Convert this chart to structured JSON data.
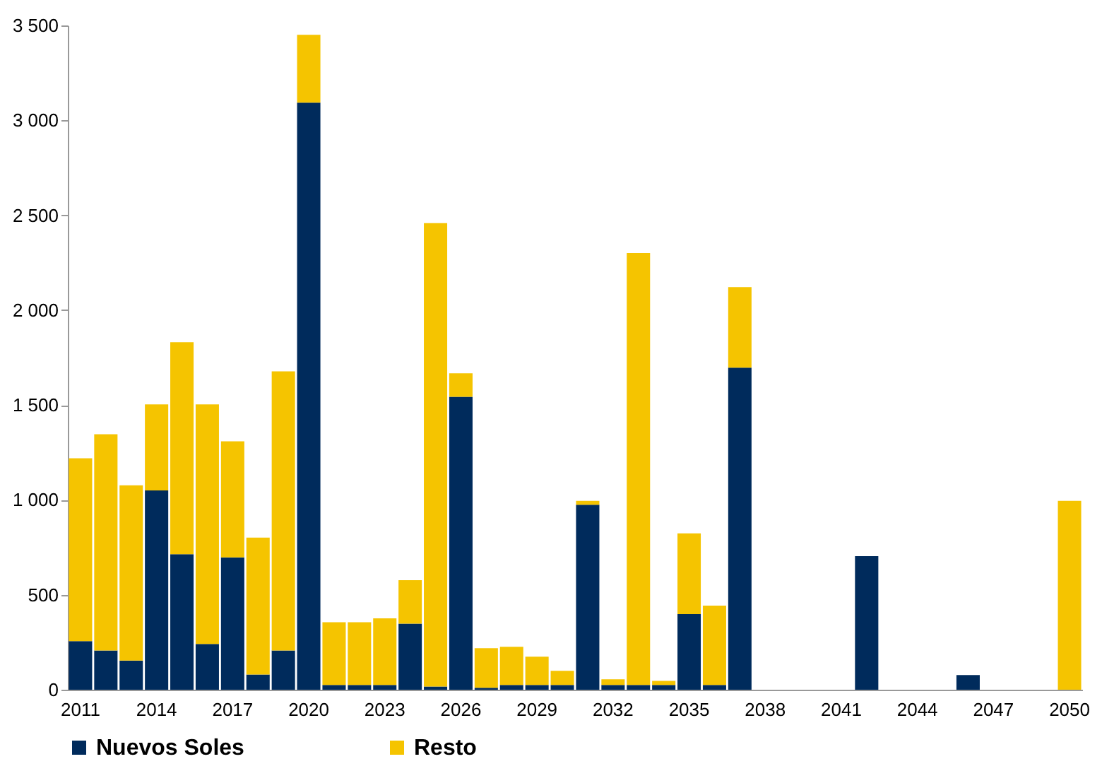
{
  "chart_data": {
    "type": "bar",
    "stacked": true,
    "legend": "bottom",
    "grid": false,
    "categories": [
      "2011",
      null,
      null,
      "2014",
      null,
      null,
      "2017",
      null,
      null,
      "2020",
      null,
      null,
      "2023",
      null,
      null,
      "2026",
      null,
      null,
      "2029",
      null,
      null,
      "2032",
      null,
      null,
      "2035",
      null,
      null,
      "2038",
      null,
      null,
      "2041",
      null,
      null,
      "2044",
      null,
      null,
      "2047",
      null,
      null,
      "2050"
    ],
    "series": [
      {
        "name": "Nuevos Soles",
        "color": "#002b5c",
        "values": [
          256,
          207,
          154,
          1050,
          714,
          241,
          697,
          80,
          207,
          3093,
          25,
          25,
          25,
          348,
          17,
          1543,
          10,
          25,
          25,
          25,
          975,
          25,
          25,
          25,
          398,
          25,
          1697,
          0,
          0,
          0,
          0,
          704,
          0,
          0,
          0,
          77,
          0,
          0,
          0,
          0
        ]
      },
      {
        "name": "Resto",
        "color": "#f5c400",
        "values": [
          963,
          1139,
          923,
          453,
          1117,
          1262,
          612,
          721,
          1470,
          358,
          331,
          331,
          351,
          229,
          2441,
          124,
          209,
          201,
          149,
          75,
          20,
          30,
          2276,
          22,
          426,
          418,
          424,
          0,
          0,
          0,
          0,
          0,
          0,
          0,
          0,
          0,
          0,
          0,
          0,
          995
        ]
      }
    ],
    "ylim": [
      0,
      3500
    ],
    "yticks": [
      0,
      500,
      {
        "value": 1000,
        "label": "1 000"
      },
      {
        "value": 1500,
        "label": "1 500"
      },
      {
        "value": 2000,
        "label": "2 000"
      },
      {
        "value": 2500,
        "label": "2 500"
      },
      {
        "value": 3000,
        "label": "3 000"
      },
      {
        "value": 3500,
        "label": "3 500"
      }
    ]
  }
}
